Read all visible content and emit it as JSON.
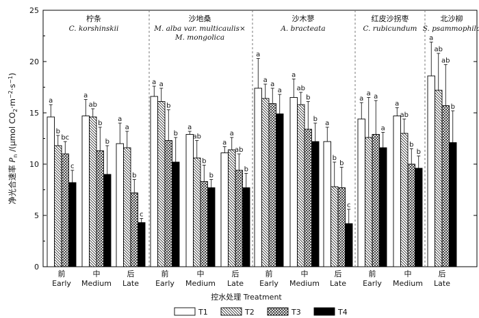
{
  "chart_data": {
    "type": "bar",
    "ylabel": "净光合速率 Pn /(μmol CO2·m⁻²·s⁻¹)",
    "ylabel_parts": {
      "cn": "净光合速率",
      "sym": "P",
      "sub": "n",
      "unit_a": "/(μmol CO",
      "unit_sub": "2",
      "unit_b": "·m",
      "unit_sup1": "−2",
      "unit_c": "·s",
      "unit_sup2": "−1",
      "unit_d": ")"
    },
    "xlabel": "控水处理 Treatment",
    "ylim": [
      0,
      25
    ],
    "yticks": [
      "0",
      "5",
      "10",
      "15",
      "20",
      "25"
    ],
    "series_names": [
      "T1",
      "T2",
      "T3",
      "T4"
    ],
    "series_fills": [
      "#ffffff",
      "hatch-diag",
      "hatch-cross",
      "#000000"
    ],
    "species": [
      {
        "name_cn": "柠条",
        "name_lat": [
          "C. korshinskii"
        ],
        "groups": [
          {
            "label_cn": "前",
            "label_en": "Early",
            "values": [
              14.6,
              11.8,
              11.0,
              8.2
            ],
            "errors": [
              1.2,
              1.0,
              1.2,
              1.2
            ],
            "sig": [
              "a",
              "b",
              "bc",
              "c"
            ]
          },
          {
            "label_cn": "中",
            "label_en": "Medium",
            "values": [
              14.7,
              14.6,
              11.3,
              9.0
            ],
            "errors": [
              1.6,
              0.8,
              2.3,
              2.8
            ],
            "sig": [
              "a",
              "ab",
              "b",
              "b"
            ]
          },
          {
            "label_cn": "后",
            "label_en": "Late",
            "values": [
              12.0,
              11.6,
              7.2,
              4.3
            ],
            "errors": [
              2.0,
              1.6,
              1.3,
              0.4
            ],
            "sig": [
              "a",
              "a",
              "b",
              "c"
            ]
          }
        ]
      },
      {
        "name_cn": "沙地桑",
        "name_lat": [
          "M. alba var. multicaulis×",
          "M. mongolica"
        ],
        "groups": [
          {
            "label_cn": "前",
            "label_en": "Early",
            "values": [
              16.6,
              16.1,
              12.3,
              10.2
            ],
            "errors": [
              1.0,
              1.3,
              3.0,
              2.4
            ],
            "sig": [
              "a",
              "a",
              "b",
              "b"
            ]
          },
          {
            "label_cn": "中",
            "label_en": "Medium",
            "values": [
              12.9,
              10.6,
              8.3,
              7.7
            ],
            "errors": [
              0.3,
              1.7,
              1.6,
              0.8
            ],
            "sig": [
              "a",
              "ab",
              "b",
              "b"
            ]
          },
          {
            "label_cn": "后",
            "label_en": "Late",
            "values": [
              11.1,
              11.4,
              9.4,
              7.7
            ],
            "errors": [
              0.6,
              1.2,
              1.6,
              1.4
            ],
            "sig": [
              "a",
              "a",
              "ab",
              "b"
            ]
          }
        ]
      },
      {
        "name_cn": "沙木蓼",
        "name_lat": [
          "A. bracteata"
        ],
        "groups": [
          {
            "label_cn": "前",
            "label_en": "Early",
            "values": [
              17.4,
              16.4,
              15.9,
              14.9
            ],
            "errors": [
              2.9,
              1.4,
              1.5,
              1.9
            ],
            "sig": [
              "a",
              "a",
              "a",
              "a"
            ]
          },
          {
            "label_cn": "中",
            "label_en": "Medium",
            "values": [
              16.5,
              15.8,
              13.4,
              12.2
            ],
            "errors": [
              1.8,
              1.2,
              2.7,
              1.8
            ],
            "sig": [
              "a",
              "ab",
              "b",
              "b"
            ]
          },
          {
            "label_cn": "后",
            "label_en": "Late",
            "values": [
              12.2,
              7.8,
              7.7,
              4.2
            ],
            "errors": [
              1.4,
              2.4,
              2.0,
              1.4
            ],
            "sig": [
              "a",
              "b",
              "b",
              "c"
            ]
          }
        ]
      },
      {
        "name_cn": "红皮沙拐枣",
        "name_lat": [
          "C. rubicundum"
        ],
        "groups": [
          {
            "label_cn": "前",
            "label_en": "Early",
            "values": [
              14.4,
              12.6,
              12.9,
              11.6
            ],
            "errors": [
              1.6,
              3.9,
              3.3,
              1.5
            ],
            "sig": [
              "a",
              "a",
              "a",
              "a"
            ]
          },
          {
            "label_cn": "中",
            "label_en": "Medium",
            "values": [
              14.7,
              13.0,
              10.0,
              9.6
            ],
            "errors": [
              0.8,
              1.4,
              1.5,
              1.2
            ],
            "sig": [
              "a",
              "ab",
              "b",
              "b"
            ]
          }
        ]
      },
      {
        "name_cn": "北沙柳",
        "name_lat": [
          "S. psammophila"
        ],
        "groups": [
          {
            "label_cn": "后",
            "label_en": "Late",
            "values": [
              18.6,
              17.2,
              15.7,
              12.1
            ],
            "errors": [
              3.3,
              3.6,
              4.0,
              3.1
            ],
            "sig": [
              "a",
              "ab",
              "ab",
              "b"
            ]
          }
        ]
      }
    ]
  }
}
